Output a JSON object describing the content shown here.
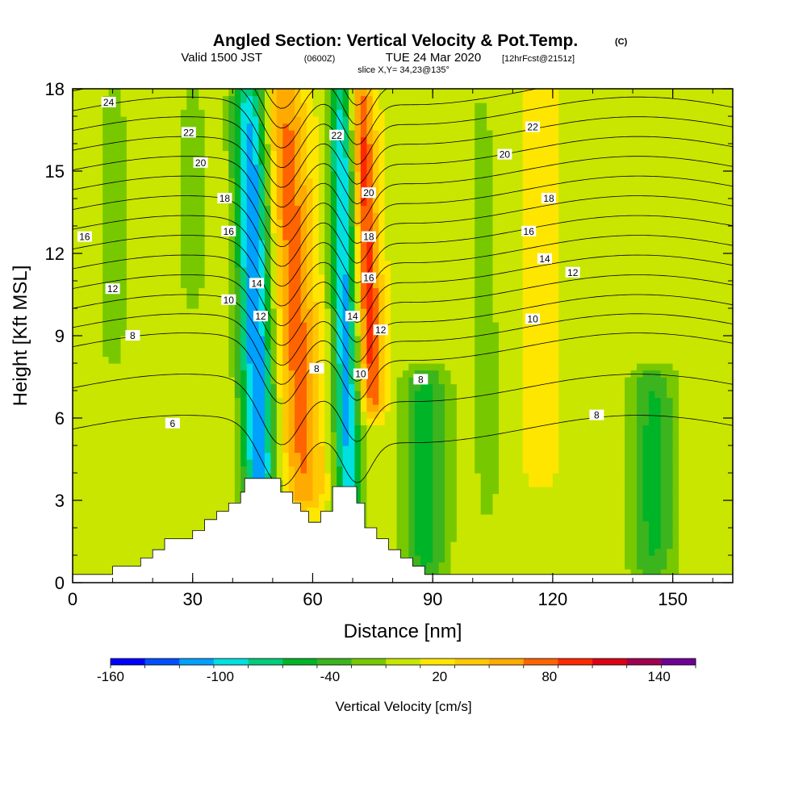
{
  "header": {
    "title": "Angled Section: Vertical Velocity & Pot.Temp.",
    "title_unit": "(C)",
    "valid_a": "Valid 1500 JST",
    "valid_z": "(0600Z)",
    "valid_b": "TUE 24 Mar 2020",
    "fcst": "[12hrFcst@2151z]",
    "slice": "slice X,Y= 34,23@135°"
  },
  "chart_data": {
    "type": "heatmap",
    "title": "Angled Section: Vertical Velocity & Pot.Temp. (C)",
    "xlabel": "Distance [nm]",
    "ylabel": "Height [Kft MSL]",
    "xlim": [
      0,
      165
    ],
    "ylim": [
      0,
      18
    ],
    "xticks": [
      0,
      30,
      60,
      90,
      120,
      150
    ],
    "yticks": [
      0,
      3,
      6,
      9,
      12,
      15,
      18
    ],
    "colorbar": {
      "label": "Vertical Velocity [cm/s]",
      "tick_labels": [
        "-160",
        "-100",
        "-40",
        "20",
        "80",
        "140"
      ],
      "tick_values": [
        -160,
        -100,
        -40,
        20,
        80,
        140
      ],
      "min": -160,
      "max": 160,
      "step": 20,
      "colors": [
        "#0000ff",
        "#0050ff",
        "#00a0ff",
        "#00e0e0",
        "#00cc7a",
        "#00b428",
        "#3cb41e",
        "#78c800",
        "#c8e600",
        "#ffe600",
        "#ffc800",
        "#ffaa00",
        "#ff6400",
        "#ff2800",
        "#dc0014",
        "#a00050",
        "#6e0096"
      ]
    },
    "velocity_field": {
      "base": 15,
      "features": [
        {
          "x": 47,
          "xtop": 44,
          "y0": 2.2,
          "y1": 18,
          "w": 4.2,
          "amp": -135
        },
        {
          "x": 69,
          "xtop": 67,
          "y0": 2.2,
          "y1": 18,
          "w": 3.2,
          "amp": -120
        },
        {
          "x": 58,
          "xtop": 53,
          "y0": 3.0,
          "y1": 18,
          "w": 5.0,
          "amp": 75
        },
        {
          "x": 75,
          "xtop": 72,
          "y0": 6.5,
          "y1": 18,
          "w": 3.0,
          "amp": 95
        },
        {
          "x": 88,
          "xtop": 88,
          "y0": 0.5,
          "y1": 7.5,
          "w": 6.0,
          "amp": -65
        },
        {
          "x": 145,
          "xtop": 145,
          "y0": 0.5,
          "y1": 7.5,
          "w": 6.0,
          "amp": -60
        },
        {
          "x": 104,
          "xtop": 102,
          "y0": 2.0,
          "y1": 18,
          "w": 5.0,
          "amp": -20
        },
        {
          "x": 117,
          "xtop": 117,
          "y0": 4.0,
          "y1": 18,
          "w": 4.0,
          "amp": 20
        },
        {
          "x": 10,
          "xtop": 10,
          "y0": 8.0,
          "y1": 18,
          "w": 6.0,
          "amp": -20
        },
        {
          "x": 30,
          "xtop": 30,
          "y0": 10.0,
          "y1": 18,
          "w": 4.0,
          "amp": -22
        }
      ]
    },
    "theta_levels": [
      6,
      8,
      10,
      12,
      14,
      16,
      18,
      20,
      22,
      24
    ],
    "theta_labels": [
      {
        "t": "24",
        "x": 9,
        "y": 17.5
      },
      {
        "t": "22",
        "x": 29,
        "y": 16.4
      },
      {
        "t": "20",
        "x": 32,
        "y": 15.3
      },
      {
        "t": "18",
        "x": 38,
        "y": 14.0
      },
      {
        "t": "16",
        "x": 3,
        "y": 12.6
      },
      {
        "t": "16",
        "x": 39,
        "y": 12.8
      },
      {
        "t": "12",
        "x": 10,
        "y": 10.7
      },
      {
        "t": "10",
        "x": 39,
        "y": 10.3
      },
      {
        "t": "8",
        "x": 15,
        "y": 9.0
      },
      {
        "t": "6",
        "x": 25,
        "y": 5.8
      },
      {
        "t": "14",
        "x": 46,
        "y": 10.9
      },
      {
        "t": "12",
        "x": 47,
        "y": 9.7
      },
      {
        "t": "8",
        "x": 61,
        "y": 7.8
      },
      {
        "t": "22",
        "x": 66,
        "y": 16.3
      },
      {
        "t": "20",
        "x": 74,
        "y": 14.2
      },
      {
        "t": "18",
        "x": 74,
        "y": 12.6
      },
      {
        "t": "16",
        "x": 74,
        "y": 11.1
      },
      {
        "t": "14",
        "x": 70,
        "y": 9.7
      },
      {
        "t": "12",
        "x": 77,
        "y": 9.2
      },
      {
        "t": "10",
        "x": 72,
        "y": 7.6
      },
      {
        "t": "8",
        "x": 87,
        "y": 7.4
      },
      {
        "t": "22",
        "x": 115,
        "y": 16.6
      },
      {
        "t": "20",
        "x": 108,
        "y": 15.6
      },
      {
        "t": "18",
        "x": 119,
        "y": 14.0
      },
      {
        "t": "16",
        "x": 114,
        "y": 12.8
      },
      {
        "t": "14",
        "x": 118,
        "y": 11.8
      },
      {
        "t": "12",
        "x": 125,
        "y": 11.3
      },
      {
        "t": "10",
        "x": 115,
        "y": 9.6
      },
      {
        "t": "8",
        "x": 131,
        "y": 6.1
      }
    ],
    "terrain": [
      [
        0,
        0.3
      ],
      [
        10,
        0.3
      ],
      [
        10,
        0.6
      ],
      [
        17,
        0.6
      ],
      [
        17,
        0.9
      ],
      [
        20,
        0.9
      ],
      [
        20,
        1.2
      ],
      [
        23,
        1.2
      ],
      [
        23,
        1.6
      ],
      [
        30,
        1.6
      ],
      [
        30,
        1.9
      ],
      [
        33,
        1.9
      ],
      [
        33,
        2.3
      ],
      [
        36,
        2.3
      ],
      [
        36,
        2.6
      ],
      [
        39,
        2.6
      ],
      [
        39,
        2.9
      ],
      [
        42,
        2.9
      ],
      [
        42,
        3.3
      ],
      [
        43,
        3.3
      ],
      [
        43,
        3.8
      ],
      [
        52,
        3.8
      ],
      [
        52,
        3.3
      ],
      [
        55,
        3.3
      ],
      [
        55,
        2.9
      ],
      [
        57,
        2.9
      ],
      [
        57,
        2.6
      ],
      [
        59,
        2.6
      ],
      [
        59,
        2.2
      ],
      [
        62,
        2.2
      ],
      [
        62,
        2.6
      ],
      [
        65,
        2.6
      ],
      [
        65,
        3.5
      ],
      [
        71,
        3.5
      ],
      [
        71,
        2.9
      ],
      [
        73,
        2.9
      ],
      [
        73,
        2.0
      ],
      [
        76,
        2.0
      ],
      [
        76,
        1.6
      ],
      [
        79,
        1.6
      ],
      [
        79,
        1.2
      ],
      [
        82,
        1.2
      ],
      [
        82,
        0.9
      ],
      [
        85,
        0.9
      ],
      [
        85,
        0.6
      ],
      [
        88,
        0.6
      ],
      [
        88,
        0.3
      ],
      [
        165,
        0.3
      ]
    ]
  }
}
